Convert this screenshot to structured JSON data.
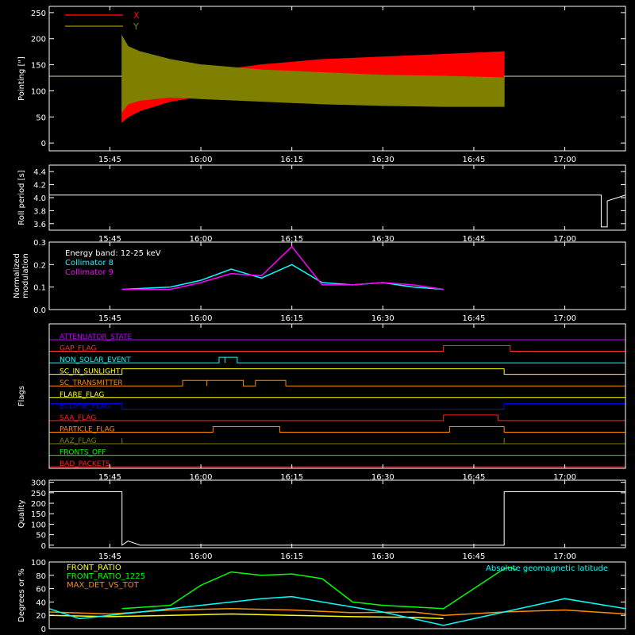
{
  "chart_data": [
    {
      "type": "line",
      "ylabel": "Pointing [\"]",
      "yticks": [
        "0",
        "50",
        "100",
        "150",
        "200",
        "250"
      ],
      "ylim": [
        0,
        250
      ],
      "xticks": [
        "15:45",
        "16:00",
        "16:15",
        "16:30",
        "16:45",
        "17:00"
      ],
      "xlim": [
        "15:35",
        "17:10"
      ],
      "legend": [
        {
          "name": "X",
          "color": "#ff0000"
        },
        {
          "name": "Y",
          "color": "#808000"
        }
      ],
      "series": [
        {
          "name": "X",
          "color": "#ff0000",
          "x": [
            "15:35",
            "15:47",
            "15:47",
            "15:48",
            "15:50",
            "15:55",
            "16:00",
            "16:10",
            "16:20",
            "16:30",
            "16:40",
            "16:50",
            "16:50",
            "17:10"
          ],
          "ymin": [
            128,
            128,
            40,
            50,
            62,
            80,
            90,
            100,
            108,
            112,
            115,
            118,
            128,
            128
          ],
          "ymax": [
            128,
            128,
            130,
            185,
            170,
            140,
            135,
            150,
            160,
            165,
            170,
            175,
            128,
            128
          ]
        },
        {
          "name": "Y",
          "color": "#808000",
          "x": [
            "15:35",
            "15:47",
            "15:47",
            "15:48",
            "15:50",
            "15:55",
            "16:00",
            "16:10",
            "16:20",
            "16:30",
            "16:40",
            "16:50",
            "16:50",
            "17:10"
          ],
          "ymin": [
            128,
            128,
            60,
            75,
            82,
            88,
            85,
            80,
            75,
            72,
            70,
            70,
            128,
            128
          ],
          "ymax": [
            128,
            128,
            205,
            185,
            175,
            160,
            150,
            140,
            135,
            130,
            128,
            125,
            128,
            128
          ]
        }
      ]
    },
    {
      "type": "line",
      "ylabel": "Roll period [s]",
      "yticks": [
        "3.6",
        "3.8",
        "4.0",
        "4.2",
        "4.4"
      ],
      "ylim": [
        3.5,
        4.5
      ],
      "xticks": [
        "15:45",
        "16:00",
        "16:15",
        "16:30",
        "16:45",
        "17:00"
      ],
      "series": [
        {
          "name": "Roll period",
          "color": "#ffffff",
          "x": [
            "15:35",
            "15:50",
            "16:10",
            "16:30",
            "16:50",
            "17:06",
            "17:06",
            "17:07",
            "17:07",
            "17:10"
          ],
          "y": [
            4.04,
            4.04,
            4.04,
            4.04,
            4.04,
            4.04,
            3.55,
            3.55,
            3.95,
            4.04
          ]
        }
      ]
    },
    {
      "type": "line",
      "ylabel": "Normalized modulation",
      "yticks": [
        "0.0",
        "0.1",
        "0.2",
        "0.3"
      ],
      "ylim": [
        0,
        0.3
      ],
      "xticks": [
        "15:45",
        "16:00",
        "16:15",
        "16:30",
        "16:45",
        "17:00"
      ],
      "annotation": "Energy band: 12-25 keV",
      "legend": [
        {
          "name": "Collimator 8",
          "color": "#00ffff"
        },
        {
          "name": "Collimator 9",
          "color": "#ff00ff"
        }
      ],
      "series": [
        {
          "name": "Collimator 8",
          "color": "#00ffff",
          "x": [
            "15:47",
            "15:55",
            "16:00",
            "16:05",
            "16:10",
            "16:15",
            "16:20",
            "16:25",
            "16:30",
            "16:35",
            "16:40"
          ],
          "y": [
            0.09,
            0.1,
            0.13,
            0.18,
            0.14,
            0.2,
            0.12,
            0.11,
            0.12,
            0.1,
            0.09
          ]
        },
        {
          "name": "Collimator 9",
          "color": "#ff00ff",
          "x": [
            "15:47",
            "15:55",
            "16:00",
            "16:05",
            "16:10",
            "16:15",
            "16:20",
            "16:25",
            "16:30",
            "16:35",
            "16:40"
          ],
          "y": [
            0.09,
            0.09,
            0.12,
            0.16,
            0.15,
            0.28,
            0.11,
            0.11,
            0.12,
            0.11,
            0.09
          ]
        }
      ]
    },
    {
      "type": "line",
      "ylabel": "Flags",
      "xticks": [
        "15:45",
        "16:00",
        "16:15",
        "16:30",
        "16:45",
        "17:00"
      ],
      "flags": [
        {
          "name": "ATTENUATOR_STATE",
          "color": "#c000ff",
          "segments": []
        },
        {
          "name": "GAP_FLAG",
          "color": "#ff3030",
          "segments": [
            [
              "16:40",
              "16:51"
            ]
          ]
        },
        {
          "name": "NON_SOLAR_EVENT",
          "color": "#00ffff",
          "segments": [
            [
              "16:03",
              "16:04"
            ],
            [
              "16:04",
              "16:06"
            ]
          ]
        },
        {
          "name": "SC_IN_SUNLIGHT",
          "color": "#ffff00",
          "segments": [
            [
              "15:47",
              "16:50"
            ]
          ]
        },
        {
          "name": "SC_TRANSMITTER",
          "color": "#ff8c00",
          "segments": [
            [
              "15:57",
              "16:01"
            ],
            [
              "16:01",
              "16:07"
            ],
            [
              "16:09",
              "16:14"
            ]
          ]
        },
        {
          "name": "FLARE_FLAG",
          "color": "#ffff00",
          "segments": []
        },
        {
          "name": "ECLIPSE_FLAG",
          "color": "#0000ff",
          "segments": [
            [
              "15:35",
              "15:47"
            ],
            [
              "16:50",
              "17:10"
            ]
          ]
        },
        {
          "name": "SAA_FLAG",
          "color": "#ff2020",
          "segments": [
            [
              "16:40",
              "16:49"
            ]
          ]
        },
        {
          "name": "PARTICLE_FLAG",
          "color": "#ff8c00",
          "segments": [
            [
              "16:02",
              "16:13"
            ],
            [
              "16:41",
              "16:50"
            ]
          ]
        },
        {
          "name": "AAZ_FLAG",
          "color": "#808000",
          "segments": [
            [
              "15:47",
              "15:47"
            ],
            [
              "16:50",
              "16:50"
            ]
          ]
        },
        {
          "name": "FRONTS_OFF",
          "color": "#00ff00",
          "segments": []
        },
        {
          "name": "BAD_PACKETS",
          "color": "#ff2020",
          "segments": []
        }
      ]
    },
    {
      "type": "line",
      "ylabel": "Quality",
      "yticks": [
        "0",
        "50",
        "100",
        "150",
        "200",
        "250",
        "300"
      ],
      "ylim": [
        0,
        300
      ],
      "xticks": [
        "15:45",
        "16:00",
        "16:15",
        "16:30",
        "16:45",
        "17:00"
      ],
      "series": [
        {
          "name": "Quality",
          "color": "#ffffff",
          "x": [
            "15:35",
            "15:47",
            "15:47",
            "15:48",
            "15:50",
            "16:30",
            "16:50",
            "16:50",
            "17:10"
          ],
          "y": [
            255,
            255,
            0,
            20,
            0,
            0,
            0,
            255,
            255
          ]
        }
      ]
    },
    {
      "type": "line",
      "ylabel": "Degrees or %",
      "yticks": [
        "0",
        "20",
        "40",
        "60",
        "80",
        "100"
      ],
      "ylim": [
        0,
        100
      ],
      "xticks": [
        "15:45",
        "16:00",
        "16:15",
        "16:30",
        "16:45",
        "17:00"
      ],
      "legend": [
        {
          "name": "FRONT_RATIO",
          "color": "#ffff00"
        },
        {
          "name": "FRONT_RATIO_1225",
          "color": "#00ff00"
        },
        {
          "name": "MAX_DET_VS_TOT",
          "color": "#ff8c00"
        }
      ],
      "annotation": "Absolute geomagnetic latitude",
      "annotation_color": "#00ffff",
      "series": [
        {
          "name": "FRONT_RATIO",
          "color": "#ffff00",
          "x": [
            "15:35",
            "15:45",
            "15:55",
            "16:05",
            "16:15",
            "16:25",
            "16:35",
            "16:40"
          ],
          "y": [
            20,
            18,
            20,
            22,
            20,
            18,
            17,
            15
          ]
        },
        {
          "name": "FRONT_RATIO_1225",
          "color": "#00ff00",
          "x": [
            "15:47",
            "15:55",
            "16:00",
            "16:05",
            "16:10",
            "16:15",
            "16:20",
            "16:25",
            "16:30",
            "16:40",
            "16:50",
            "16:51",
            "16:52"
          ],
          "y": [
            30,
            35,
            65,
            85,
            80,
            82,
            75,
            40,
            35,
            30,
            90,
            92,
            88
          ]
        },
        {
          "name": "MAX_DET_VS_TOT",
          "color": "#ff8c00",
          "x": [
            "15:35",
            "15:45",
            "15:55",
            "16:05",
            "16:15",
            "16:25",
            "16:35",
            "16:40",
            "16:50",
            "17:00",
            "17:10"
          ],
          "y": [
            25,
            22,
            28,
            30,
            28,
            24,
            25,
            20,
            25,
            28,
            22
          ]
        },
        {
          "name": "Absolute geomagnetic latitude",
          "color": "#00ffff",
          "x": [
            "15:35",
            "15:40",
            "15:50",
            "16:00",
            "16:10",
            "16:15",
            "16:20",
            "16:30",
            "16:40",
            "16:50",
            "17:00",
            "17:10"
          ],
          "y": [
            30,
            15,
            25,
            35,
            45,
            48,
            40,
            25,
            5,
            25,
            45,
            30
          ]
        }
      ]
    }
  ]
}
